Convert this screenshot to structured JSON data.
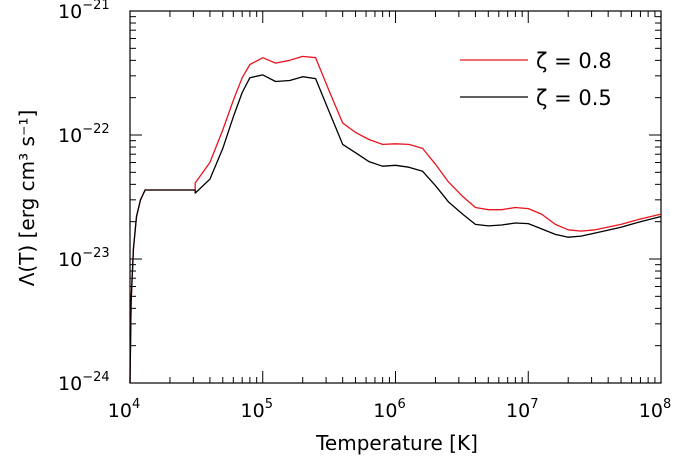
{
  "chart_data": {
    "type": "line",
    "xlabel": "Temperature [K]",
    "ylabel": "Λ(T) [erg cm³ s⁻¹]",
    "xscale": "log",
    "yscale": "log",
    "xlim": [
      10000,
      100000000
    ],
    "ylim": [
      1e-24,
      1e-21
    ],
    "grid": false,
    "legend_position": "top-right",
    "x_ticks": [
      {
        "value": 10000,
        "base": "10",
        "exp": "4"
      },
      {
        "value": 100000,
        "base": "10",
        "exp": "5"
      },
      {
        "value": 1000000,
        "base": "10",
        "exp": "6"
      },
      {
        "value": 10000000,
        "base": "10",
        "exp": "7"
      },
      {
        "value": 100000000,
        "base": "10",
        "exp": "8"
      }
    ],
    "y_ticks": [
      {
        "value": 1e-24,
        "base": "10",
        "exp": "−24"
      },
      {
        "value": 1e-23,
        "base": "10",
        "exp": "−23"
      },
      {
        "value": 1e-22,
        "base": "10",
        "exp": "−22"
      },
      {
        "value": 1e-21,
        "base": "10",
        "exp": "−21"
      }
    ],
    "series": [
      {
        "name": "ζ = 0.8",
        "color": "#e8141e",
        "points": [
          [
            10000,
            1e-24
          ],
          [
            10200,
            4.5e-24
          ],
          [
            10600,
            1.2e-23
          ],
          [
            11200,
            2.2e-23
          ],
          [
            12000,
            3e-23
          ],
          [
            13000,
            3.6e-23
          ],
          [
            20000,
            3.6e-23
          ],
          [
            31000,
            3.6e-23
          ],
          [
            31000,
            4.1e-23
          ],
          [
            40000,
            6e-23
          ],
          [
            50000,
            1.1e-22
          ],
          [
            60000,
            1.9e-22
          ],
          [
            70000,
            2.9e-22
          ],
          [
            80000,
            3.7e-22
          ],
          [
            100000,
            4.2e-22
          ],
          [
            125000,
            3.8e-22
          ],
          [
            160000,
            4e-22
          ],
          [
            200000,
            4.3e-22
          ],
          [
            250000,
            4.2e-22
          ],
          [
            320000,
            2.2e-22
          ],
          [
            400000,
            1.25e-22
          ],
          [
            500000,
            1.05e-22
          ],
          [
            630000,
            9.2e-23
          ],
          [
            800000,
            8.4e-23
          ],
          [
            1000000,
            8.5e-23
          ],
          [
            1260000,
            8.4e-23
          ],
          [
            1600000,
            7.8e-23
          ],
          [
            2000000,
            5.8e-23
          ],
          [
            2500000,
            4.2e-23
          ],
          [
            3200000,
            3.2e-23
          ],
          [
            4000000,
            2.6e-23
          ],
          [
            5000000,
            2.5e-23
          ],
          [
            6300000,
            2.5e-23
          ],
          [
            8000000,
            2.6e-23
          ],
          [
            10000000,
            2.55e-23
          ],
          [
            12600000,
            2.3e-23
          ],
          [
            16000000,
            1.9e-23
          ],
          [
            20000000,
            1.72e-23
          ],
          [
            25000000,
            1.68e-23
          ],
          [
            32000000,
            1.72e-23
          ],
          [
            50000000,
            1.9e-23
          ],
          [
            70000000,
            2.1e-23
          ],
          [
            100000000,
            2.3e-23
          ]
        ]
      },
      {
        "name": "ζ = 0.5",
        "color": "#000000",
        "points": [
          [
            10000,
            1e-24
          ],
          [
            10200,
            4.5e-24
          ],
          [
            10600,
            1.2e-23
          ],
          [
            11200,
            2.2e-23
          ],
          [
            12000,
            3e-23
          ],
          [
            13000,
            3.6e-23
          ],
          [
            20000,
            3.6e-23
          ],
          [
            31000,
            3.6e-23
          ],
          [
            31000,
            3.4e-23
          ],
          [
            40000,
            4.4e-23
          ],
          [
            50000,
            7.8e-23
          ],
          [
            60000,
            1.4e-22
          ],
          [
            70000,
            2.2e-22
          ],
          [
            80000,
            2.9e-22
          ],
          [
            100000,
            3.05e-22
          ],
          [
            125000,
            2.7e-22
          ],
          [
            160000,
            2.75e-22
          ],
          [
            200000,
            2.95e-22
          ],
          [
            250000,
            2.85e-22
          ],
          [
            320000,
            1.5e-22
          ],
          [
            400000,
            8.4e-23
          ],
          [
            500000,
            7.2e-23
          ],
          [
            630000,
            6.1e-23
          ],
          [
            800000,
            5.6e-23
          ],
          [
            1000000,
            5.7e-23
          ],
          [
            1260000,
            5.5e-23
          ],
          [
            1600000,
            5.1e-23
          ],
          [
            2000000,
            3.9e-23
          ],
          [
            2500000,
            2.9e-23
          ],
          [
            3200000,
            2.3e-23
          ],
          [
            4000000,
            1.9e-23
          ],
          [
            5000000,
            1.85e-23
          ],
          [
            6300000,
            1.88e-23
          ],
          [
            8000000,
            1.95e-23
          ],
          [
            10000000,
            1.93e-23
          ],
          [
            12600000,
            1.75e-23
          ],
          [
            16000000,
            1.58e-23
          ],
          [
            20000000,
            1.5e-23
          ],
          [
            25000000,
            1.53e-23
          ],
          [
            32000000,
            1.62e-23
          ],
          [
            50000000,
            1.8e-23
          ],
          [
            70000000,
            2e-23
          ],
          [
            100000000,
            2.2e-23
          ]
        ]
      }
    ]
  }
}
